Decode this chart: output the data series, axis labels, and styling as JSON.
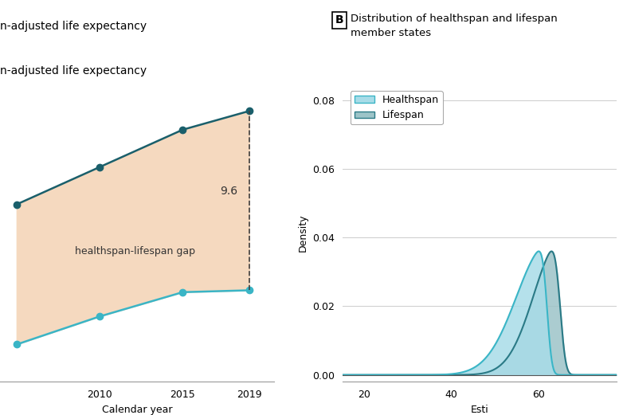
{
  "panel_a_title": "n-adjusted life expectancy",
  "panel_b_label": "B",
  "panel_b_title": "Distribution of healthspan and lifespan\nmember states",
  "gap_label": "9.6",
  "gap_annotation": "healthspan-lifespan gap",
  "xlabel_a": "Calendar year",
  "xlabel_b": "Esti",
  "ylabel_b": "Density",
  "years": [
    2005,
    2010,
    2015,
    2019
  ],
  "lifespan_values": [
    68.5,
    70.5,
    72.5,
    73.5
  ],
  "healthspan_values": [
    61.0,
    62.5,
    63.8,
    63.9
  ],
  "fill_color": "#F5D9BF",
  "lifespan_line_color": "#1a5f6b",
  "healthspan_line_color": "#3ab5c6",
  "dashed_line_color": "#404040",
  "healthspan_kde_color": "#a8dce8",
  "healthspan_kde_edge": "#3ab5c6",
  "lifespan_kde_color": "#9dc4c8",
  "lifespan_kde_edge": "#2a7a86",
  "legend_healthspan_color": "#a8dce8",
  "legend_lifespan_color": "#9dc4c8",
  "ylim_b": [
    -0.002,
    0.085
  ],
  "yticks_b": [
    0,
    0.02,
    0.04,
    0.06,
    0.08
  ],
  "xlim_b": [
    15,
    78
  ],
  "xticks_b": [
    20,
    40,
    60
  ],
  "background_color": "#ffffff",
  "grid_color": "#cccccc"
}
